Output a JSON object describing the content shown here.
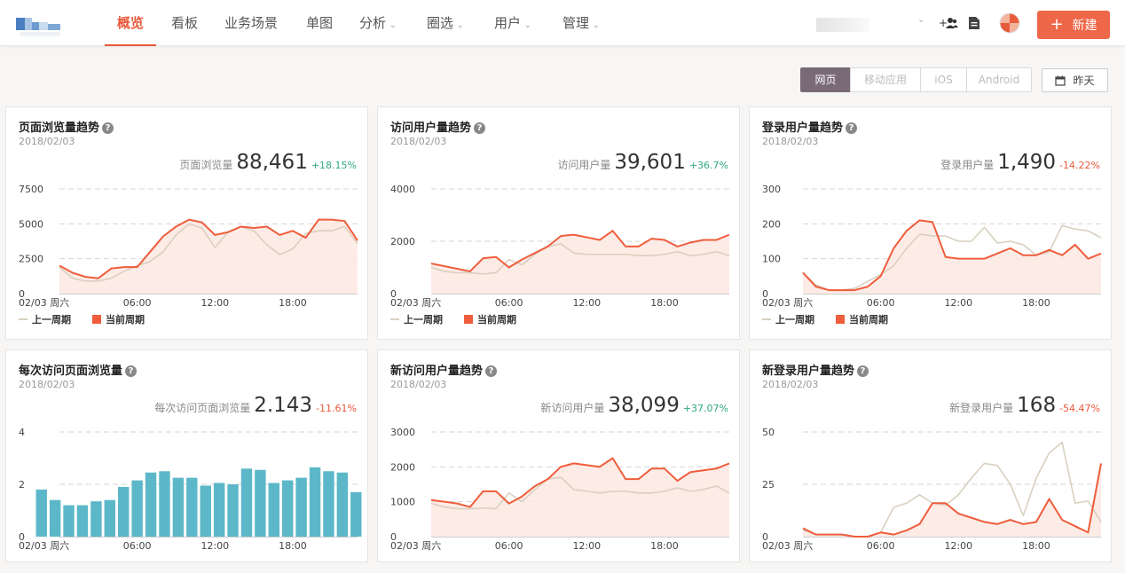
{
  "nav": {
    "items": [
      {
        "label": "概览",
        "active": true,
        "caret": false
      },
      {
        "label": "看板",
        "active": false,
        "caret": false
      },
      {
        "label": "业务场景",
        "active": false,
        "caret": false
      },
      {
        "label": "单图",
        "active": false,
        "caret": false
      },
      {
        "label": "分析",
        "active": false,
        "caret": true
      },
      {
        "label": "圈选",
        "active": false,
        "caret": true
      },
      {
        "label": "用户",
        "active": false,
        "caret": true
      },
      {
        "label": "管理",
        "active": false,
        "caret": true
      }
    ],
    "new_button": "新建",
    "icons": [
      "add-member-icon",
      "document-icon",
      "avatar"
    ]
  },
  "platform_tabs": [
    {
      "label": "网页",
      "active": true
    },
    {
      "label": "移动应用",
      "active": false
    },
    {
      "label": "iOS",
      "active": false
    },
    {
      "label": "Android",
      "active": false
    }
  ],
  "date_button": "昨天",
  "colors": {
    "accent": "#ee6748",
    "current": "#ef5d3c",
    "previous": "#d9d0c0",
    "bar": "#5cb8c8",
    "up": "#2faa7d",
    "down": "#e8593b"
  },
  "legend": {
    "previous": "上一周期",
    "current": "当前周期"
  },
  "cards": [
    {
      "title": "页面浏览量趋势",
      "date": "2018/02/03",
      "metric_label": "页面浏览量",
      "metric_value": "88,461",
      "change": "+18.15%",
      "trend": "up",
      "show_legend": true,
      "chart_data": {
        "type": "line",
        "x_ticks": [
          "02/03 周六",
          "06:00",
          "12:00",
          "18:00"
        ],
        "y_ticks": [
          "0",
          "2500",
          "5000",
          "7500"
        ],
        "ylim": [
          0,
          7500
        ],
        "series": [
          {
            "name": "上一周期",
            "values": [
              1900,
              1100,
              900,
              900,
              1100,
              1600,
              2000,
              2300,
              3000,
              4200,
              5000,
              4700,
              3300,
              4400,
              4800,
              4500,
              3500,
              2800,
              3200,
              4300,
              4500,
              4500,
              4800,
              3600
            ]
          },
          {
            "name": "当前周期",
            "values": [
              2000,
              1500,
              1200,
              1100,
              1800,
              1900,
              1900,
              3000,
              4100,
              4800,
              5300,
              5100,
              4200,
              4400,
              4800,
              4700,
              4800,
              4200,
              4500,
              4000,
              5300,
              5300,
              5200,
              3800
            ]
          }
        ]
      }
    },
    {
      "title": "访问用户量趋势",
      "date": "2018/02/03",
      "metric_label": "访问用户量",
      "metric_value": "39,601",
      "change": "+36.7%",
      "trend": "up",
      "show_legend": true,
      "chart_data": {
        "type": "line",
        "x_ticks": [
          "02/03 周六",
          "06:00",
          "12:00",
          "18:00"
        ],
        "y_ticks": [
          "0",
          "2000",
          "4000"
        ],
        "ylim": [
          0,
          4000
        ],
        "series": [
          {
            "name": "上一周期",
            "values": [
              1000,
              850,
              800,
              800,
              750,
              800,
              1300,
              1100,
              1500,
              1800,
              1900,
              1550,
              1500,
              1500,
              1500,
              1500,
              1450,
              1450,
              1500,
              1600,
              1450,
              1500,
              1600,
              1450
            ]
          },
          {
            "name": "当前周期",
            "values": [
              1150,
              1050,
              950,
              850,
              1350,
              1400,
              1000,
              1300,
              1550,
              1800,
              2200,
              2250,
              2150,
              2050,
              2400,
              1800,
              1800,
              2100,
              2050,
              1800,
              1950,
              2050,
              2050,
              2250
            ]
          }
        ]
      }
    },
    {
      "title": "登录用户量趋势",
      "date": "2018/02/03",
      "metric_label": "登录用户量",
      "metric_value": "1,490",
      "change": "-14.22%",
      "trend": "down",
      "show_legend": true,
      "chart_data": {
        "type": "line",
        "x_ticks": [
          "02/03 周六",
          "06:00",
          "12:00",
          "18:00"
        ],
        "y_ticks": [
          "0",
          "100",
          "200",
          "300"
        ],
        "ylim": [
          0,
          300
        ],
        "series": [
          {
            "name": "上一周期",
            "values": [
              60,
              25,
              10,
              10,
              15,
              35,
              55,
              80,
              130,
              170,
              165,
              165,
              150,
              150,
              190,
              145,
              150,
              140,
              110,
              120,
              195,
              185,
              180,
              160
            ]
          },
          {
            "name": "当前周期",
            "values": [
              60,
              20,
              10,
              10,
              10,
              20,
              50,
              130,
              180,
              210,
              205,
              105,
              100,
              100,
              100,
              115,
              130,
              110,
              110,
              125,
              110,
              140,
              100,
              115
            ]
          }
        ]
      }
    },
    {
      "title": "每次访问页面浏览量",
      "date": "2018/02/03",
      "metric_label": "每次访问页面浏览量",
      "metric_value": "2.143",
      "change": "-11.61%",
      "trend": "down",
      "show_legend": false,
      "chart_data": {
        "type": "bar",
        "x_ticks": [
          "02/03 周六",
          "06:00",
          "12:00",
          "18:00"
        ],
        "y_ticks": [
          "0",
          "2",
          "4"
        ],
        "ylim": [
          0,
          4
        ],
        "series": [
          {
            "values": [
              1.8,
              1.4,
              1.2,
              1.2,
              1.35,
              1.4,
              1.9,
              2.15,
              2.45,
              2.5,
              2.25,
              2.25,
              1.95,
              2.05,
              2.0,
              2.6,
              2.55,
              2.05,
              2.15,
              2.25,
              2.65,
              2.5,
              2.45,
              1.7
            ]
          }
        ]
      }
    },
    {
      "title": "新访问用户量趋势",
      "date": "2018/02/03",
      "metric_label": "新访问用户量",
      "metric_value": "38,099",
      "change": "+37.07%",
      "trend": "up",
      "show_legend": false,
      "chart_data": {
        "type": "line",
        "x_ticks": [
          "02/03 周六",
          "06:00",
          "12:00",
          "18:00"
        ],
        "y_ticks": [
          "0",
          "1000",
          "2000",
          "3000"
        ],
        "ylim": [
          0,
          3000
        ],
        "series": [
          {
            "name": "上一周期",
            "values": [
              950,
              850,
              800,
              800,
              820,
              800,
              1250,
              1000,
              1350,
              1650,
              1700,
              1350,
              1300,
              1250,
              1300,
              1300,
              1250,
              1250,
              1300,
              1400,
              1300,
              1350,
              1450,
              1250
            ]
          },
          {
            "name": "当前周期",
            "values": [
              1050,
              1000,
              950,
              850,
              1300,
              1300,
              950,
              1150,
              1450,
              1650,
              2000,
              2100,
              2050,
              2000,
              2250,
              1650,
              1650,
              1950,
              1950,
              1600,
              1850,
              1900,
              1950,
              2100
            ]
          }
        ]
      }
    },
    {
      "title": "新登录用户量趋势",
      "date": "2018/02/03",
      "metric_label": "新登录用户量",
      "metric_value": "168",
      "change": "-54.47%",
      "trend": "down",
      "show_legend": false,
      "chart_data": {
        "type": "line",
        "x_ticks": [
          "02/03 周六",
          "06:00",
          "12:00",
          "18:00"
        ],
        "y_ticks": [
          "0",
          "25",
          "50"
        ],
        "ylim": [
          0,
          50
        ],
        "series": [
          {
            "name": "上一周期",
            "values": [
              3,
              1,
              1,
              1,
              0,
              0,
              2,
              14,
              16,
              20,
              16,
              15,
              20,
              28,
              35,
              34,
              25,
              10,
              28,
              40,
              45,
              16,
              17,
              7
            ]
          },
          {
            "name": "当前周期",
            "values": [
              4,
              1,
              1,
              1,
              0,
              0,
              2,
              1,
              3,
              6,
              16,
              16,
              11,
              9,
              7,
              6,
              8,
              6,
              7,
              18,
              8,
              5,
              2,
              35
            ]
          }
        ]
      }
    }
  ]
}
